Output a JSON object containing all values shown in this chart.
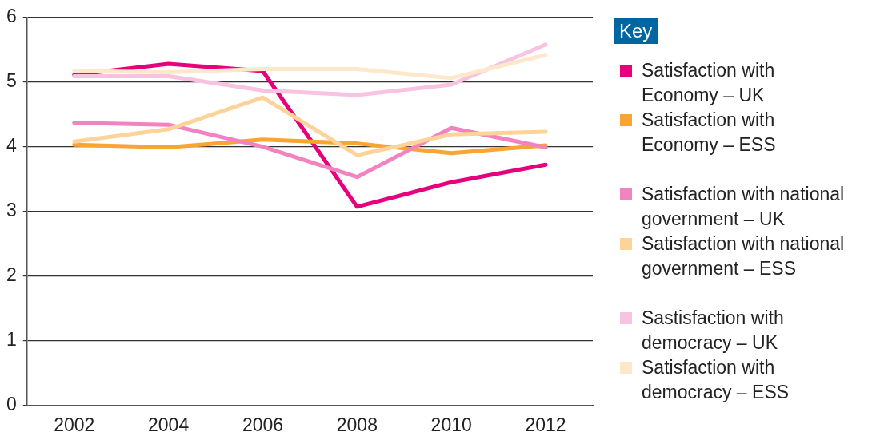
{
  "chart_data": {
    "type": "line",
    "legend_title": "Key",
    "legend": "right",
    "grid": "y",
    "marker": "none",
    "categories": [
      "2002",
      "2004",
      "2006",
      "2008",
      "2010",
      "2012"
    ],
    "ylim": [
      0,
      6
    ],
    "yticks": [
      0,
      1,
      2,
      3,
      4,
      5,
      6
    ],
    "series": [
      {
        "name": "Satisfaction with Economy – UK",
        "color": "#e6007e",
        "values": [
          5.11,
          5.28,
          5.17,
          3.07,
          3.45,
          3.72
        ]
      },
      {
        "name": "Satisfaction with Economy – ESS",
        "color": "#f9a533",
        "values": [
          4.03,
          3.99,
          4.11,
          4.05,
          3.9,
          4.02
        ]
      },
      {
        "name": "Satisfaction with national government – UK",
        "color": "#f283c0",
        "values": [
          4.37,
          4.34,
          4.0,
          3.53,
          4.29,
          3.99
        ]
      },
      {
        "name": "Satisfaction with national government – ESS",
        "color": "#fdd39a",
        "values": [
          4.08,
          4.27,
          4.76,
          3.87,
          4.19,
          4.23
        ]
      },
      {
        "name": "Sastisfaction with democracy – UK",
        "color": "#f8c3e0",
        "values": [
          5.09,
          5.09,
          4.87,
          4.8,
          4.96,
          5.58
        ]
      },
      {
        "name": "Satisfaction with democracy – ESS",
        "color": "#fde8cc",
        "values": [
          5.17,
          5.15,
          5.2,
          5.2,
          5.06,
          5.42
        ]
      }
    ]
  }
}
